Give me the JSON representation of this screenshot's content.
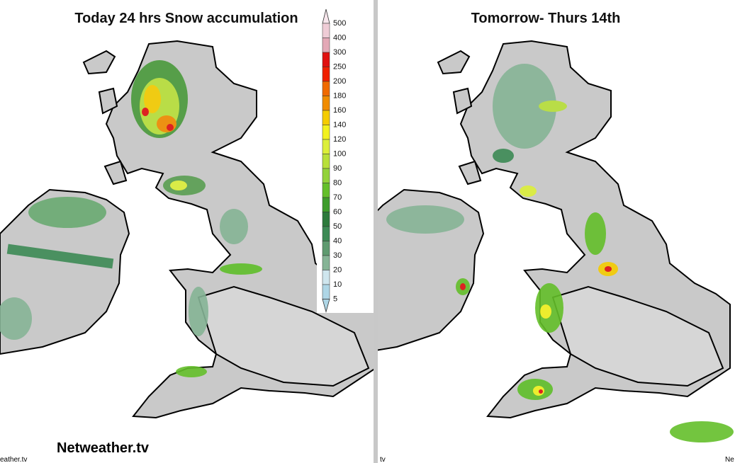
{
  "left_panel": {
    "title": "Today 24 hrs Snow accumulation",
    "watermark": "Netweather.tv",
    "small_credit": "eather.tv"
  },
  "right_panel": {
    "title": "Tomorrow-  Thurs 14th",
    "small_credit": "tv",
    "corner_credit": "Ne"
  },
  "legend": {
    "levels": [
      "500",
      "400",
      "300",
      "250",
      "200",
      "180",
      "160",
      "140",
      "120",
      "100",
      "90",
      "80",
      "70",
      "60",
      "50",
      "40",
      "30",
      "20",
      "10",
      "5"
    ],
    "colors": [
      "#f7e6ec",
      "#efccd6",
      "#e3a8b6",
      "#e01010",
      "#f02000",
      "#f06a00",
      "#f08c00",
      "#f5cc00",
      "#f2f21e",
      "#dcef3a",
      "#b8e03a",
      "#92d23a",
      "#64bf2a",
      "#3e9c2c",
      "#2d7a3c",
      "#3d8a55",
      "#5f9a70",
      "#86b496",
      "#cfe6ee",
      "#aed6e6"
    ]
  }
}
